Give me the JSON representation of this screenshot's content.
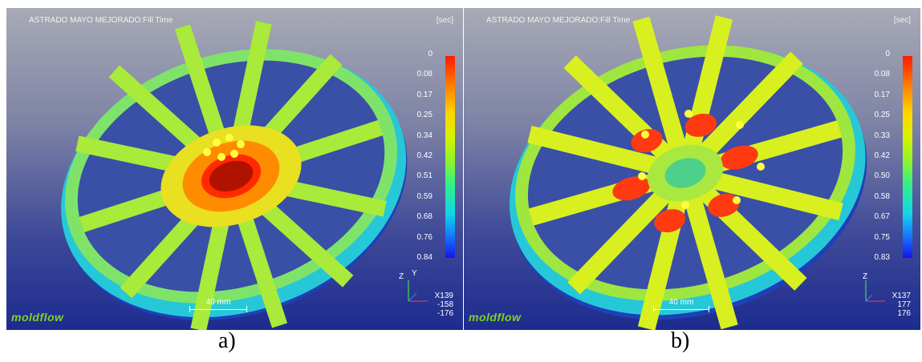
{
  "panels": [
    {
      "title": "ASTRADO MAYO MEJORADO:Fill Time",
      "unit": "[sec]",
      "ticks": [
        "0",
        "0.08",
        "0.17",
        "0.25",
        "0.34",
        "0.42",
        "0.51",
        "0.59",
        "0.68",
        "0.76",
        "0.84"
      ],
      "axis_labels": {
        "z": "Z",
        "y": "Y"
      },
      "coords": [
        "X139",
        "-158",
        "-176"
      ],
      "scale_label": "40 mm",
      "logo": "moldflow",
      "caption": "a)"
    },
    {
      "title": "ASTRADO MAYO MEJORADO:Fill Time",
      "unit": "[sec]",
      "ticks": [
        "0",
        "0.08",
        "0.17",
        "0.25",
        "0.33",
        "0.42",
        "0.50",
        "0.58",
        "0.67",
        "0.75",
        "0.83"
      ],
      "axis_labels": {
        "z": "Z",
        "y": ""
      },
      "coords": [
        "X137",
        "177",
        "176"
      ],
      "scale_label": "40 mm",
      "logo": "moldflow",
      "caption": "b)"
    }
  ],
  "colors": {
    "hot": "#ff1a00",
    "mid": "#d8f200",
    "cold": "#1414e6"
  },
  "icons": {
    "gate": "gate-marker-icon",
    "axes": "axis-triad-icon"
  }
}
